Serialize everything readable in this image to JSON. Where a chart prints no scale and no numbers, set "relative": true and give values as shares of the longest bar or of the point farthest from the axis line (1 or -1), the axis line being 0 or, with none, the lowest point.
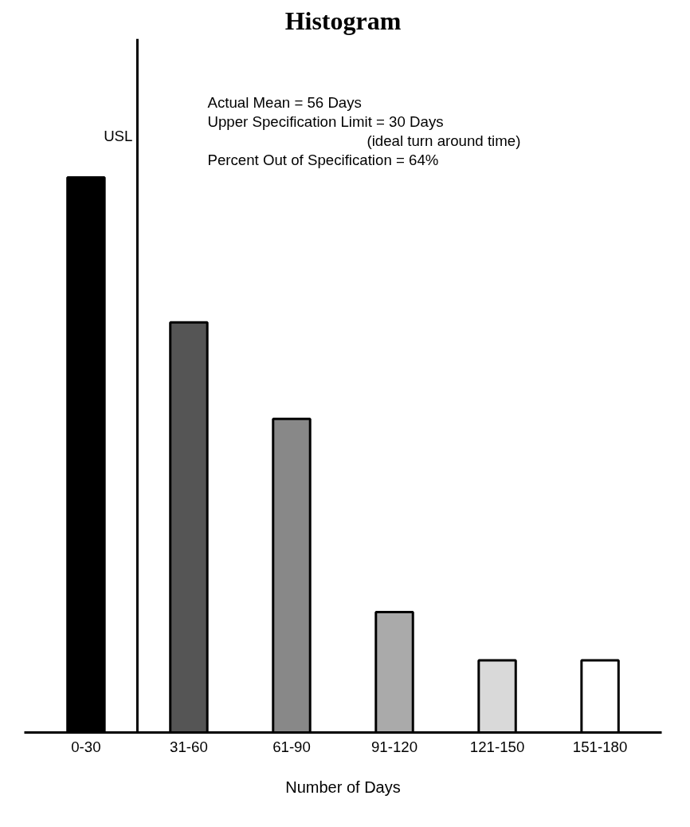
{
  "chart_data": {
    "type": "bar",
    "title": "Histogram",
    "xlabel": "Number of Days",
    "relative": true,
    "categories": [
      "0-30",
      "31-60",
      "61-90",
      "91-120",
      "121-150",
      "151-180"
    ],
    "values": [
      1,
      0.739,
      0.565,
      0.217,
      0.13,
      0.13
    ],
    "colors": [
      "#000000",
      "#555555",
      "#888888",
      "#aaaaaa",
      "#d9d9d9",
      "#ffffff"
    ],
    "annotations": [
      "USL",
      "Actual Mean =                56 Days",
      "Upper Specification Limit = 30 Days",
      "(ideal turn around time)",
      "Percent Out of Specification = 64%"
    ],
    "grid": false
  }
}
